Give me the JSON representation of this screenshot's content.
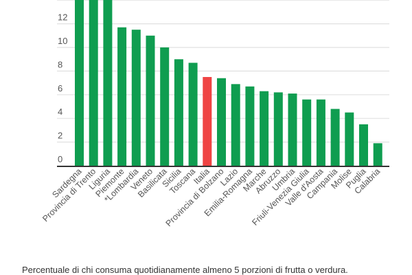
{
  "chart_data": {
    "type": "bar",
    "title": "",
    "xlabel": "",
    "ylabel": "",
    "caption": "Percentuale di chi consuma quotidianamente almeno 5 porzioni di frutta o verdura.",
    "ylim": [
      0,
      14
    ],
    "yticks": [
      "0",
      "2",
      "4",
      "6",
      "8",
      "10",
      "12"
    ],
    "grid": true,
    "categories": [
      "Sardegna",
      "Provincia di Trento",
      "Liguria",
      "Piemonte",
      "*Lombardia",
      "Veneto",
      "Basilicata",
      "Sicilia",
      "Toscana",
      "Italia",
      "Provincia di Bolzano",
      "Lazio",
      "Emilia-Romagna",
      "Marche",
      "Abruzzo",
      "Umbria",
      "Friuli-Venezia Giulia",
      "Valle d'Aosta",
      "Campania",
      "Molise",
      "Puglia",
      "Calabria"
    ],
    "values": [
      14.5,
      14.5,
      14.5,
      11.7,
      11.5,
      11.0,
      10.0,
      9.0,
      8.7,
      7.5,
      7.4,
      6.9,
      6.7,
      6.3,
      6.2,
      6.1,
      5.6,
      5.6,
      4.8,
      4.5,
      3.5,
      1.9
    ],
    "highlight": "Italia",
    "colors": {
      "bar": "#0f9d50",
      "highlight": "#ef4444",
      "grid": "#e0e0e0",
      "axis": "#333333"
    }
  }
}
